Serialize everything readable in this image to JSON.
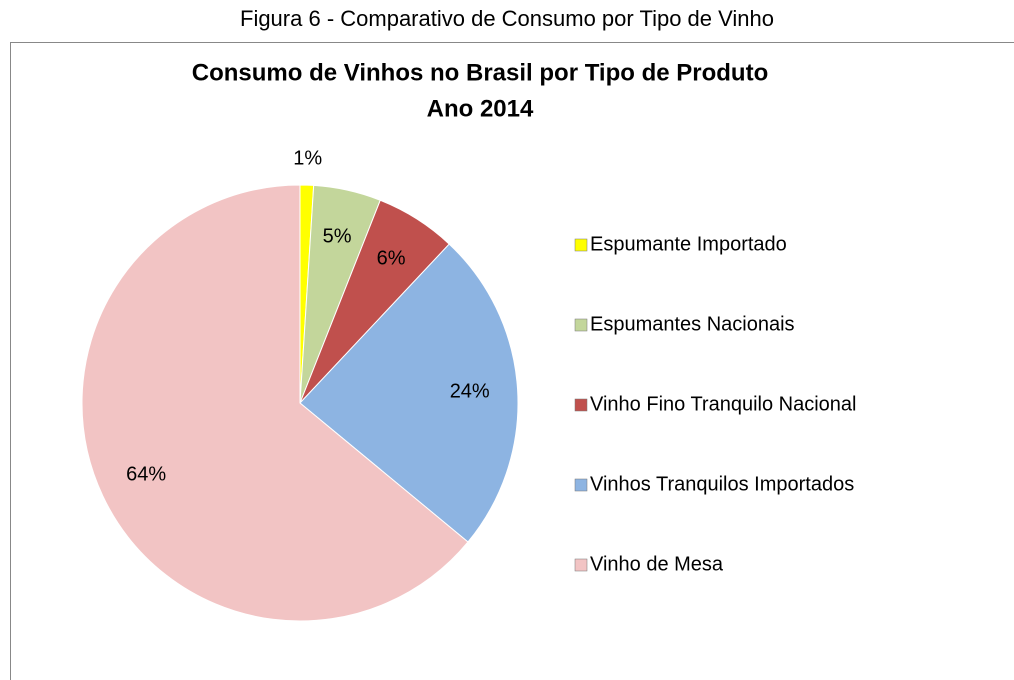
{
  "caption": "Figura 6 - Comparativo de Consumo por Tipo de Vinho",
  "chart_data": {
    "type": "pie",
    "title": "Consumo de Vinhos no Brasil por Tipo de Produto",
    "subtitle": "Ano 2014",
    "categories": [
      "Espumante Importado",
      "Espumantes Nacionais",
      "Vinho Fino Tranquilo Nacional",
      "Vinhos Tranquilos Importados",
      "Vinho de Mesa"
    ],
    "values": [
      1,
      5,
      6,
      24,
      64
    ],
    "value_labels": [
      "1%",
      "5%",
      "6%",
      "24%",
      "64%"
    ],
    "colors": [
      "#ffff00",
      "#c3d69b",
      "#c0504d",
      "#8db4e2",
      "#f2c4c4"
    ],
    "legend": "right"
  }
}
